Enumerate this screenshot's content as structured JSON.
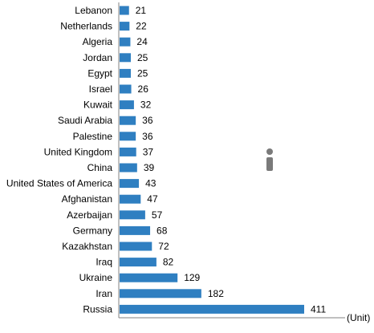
{
  "chart_data": {
    "type": "bar",
    "orientation": "horizontal",
    "categories": [
      "Lebanon",
      "Netherlands",
      "Algeria",
      "Jordan",
      "Egypt",
      "Israel",
      "Kuwait",
      "Saudi Arabia",
      "Palestine",
      "United Kingdom",
      "China",
      "United States of America",
      "Afghanistan",
      "Azerbaijan",
      "Germany",
      "Kazakhstan",
      "Iraq",
      "Ukraine",
      "Iran",
      "Russia"
    ],
    "values": [
      21,
      22,
      24,
      25,
      25,
      26,
      32,
      36,
      36,
      37,
      39,
      43,
      47,
      57,
      68,
      72,
      82,
      129,
      182,
      411
    ],
    "unit_label": "(Unit)",
    "bar_color": "#2f7fc1",
    "xlim": [
      0,
      420
    ],
    "grid": false,
    "data_labels": true
  }
}
